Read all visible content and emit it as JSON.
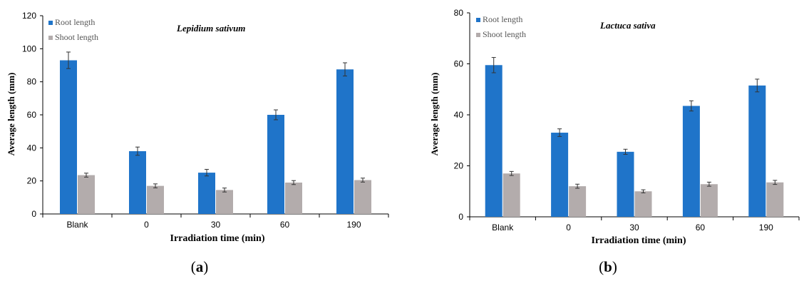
{
  "figure": {
    "caption_a_open": "(",
    "caption_a_letter": "a",
    "caption_a_close": ")",
    "caption_b_open": "(",
    "caption_b_letter": "b",
    "caption_b_close": ")"
  },
  "colors": {
    "root": "#1f74c9",
    "shoot": "#b3acac",
    "axis": "#000000"
  },
  "chart_data": [
    {
      "type": "bar",
      "title": "Lepidium sativum",
      "xlabel": "Irradiation time (min)",
      "ylabel": "Average length (mm)",
      "categories": [
        "Blank",
        "0",
        "30",
        "60",
        "190"
      ],
      "ylim": [
        0,
        120
      ],
      "yticks": [
        0,
        20,
        40,
        60,
        80,
        100,
        120
      ],
      "legend_position": "top-left",
      "grid": false,
      "series": [
        {
          "name": "Root length",
          "color": "#1f74c9",
          "values": [
            93,
            38,
            25,
            60,
            87.5
          ],
          "errors": [
            5,
            2.5,
            2,
            3,
            4
          ]
        },
        {
          "name": "Shoot length",
          "color": "#b3acac",
          "values": [
            23.5,
            17,
            14.5,
            19,
            20.5
          ],
          "errors": [
            1.2,
            1.2,
            1.2,
            1.2,
            1.2
          ]
        }
      ]
    },
    {
      "type": "bar",
      "title": "Lactuca  sativa",
      "xlabel": "Irradiation time (min)",
      "ylabel": "Average length (mm)",
      "categories": [
        "Blank",
        "0",
        "30",
        "60",
        "190"
      ],
      "ylim": [
        0,
        80
      ],
      "yticks": [
        0,
        20,
        40,
        60,
        80
      ],
      "legend_position": "top-left",
      "grid": false,
      "series": [
        {
          "name": "Root length",
          "color": "#1f74c9",
          "values": [
            59.5,
            33,
            25.5,
            43.5,
            51.5
          ],
          "errors": [
            3,
            1.5,
            1,
            2,
            2.5
          ]
        },
        {
          "name": "Shoot length",
          "color": "#b3acac",
          "values": [
            17,
            12,
            10,
            12.8,
            13.5
          ],
          "errors": [
            0.8,
            0.8,
            0.6,
            0.8,
            0.8
          ]
        }
      ]
    }
  ]
}
